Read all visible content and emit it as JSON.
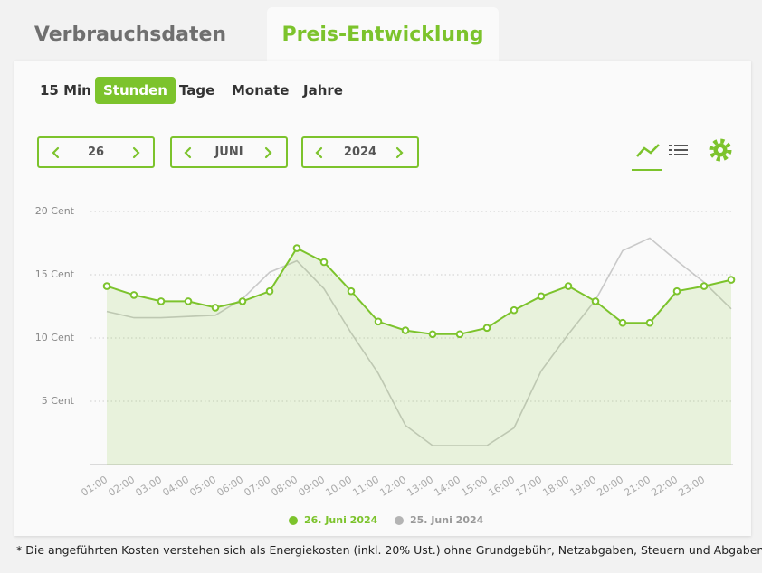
{
  "tabs": [
    "Verbrauchsdaten",
    "Preis-Entwicklung"
  ],
  "active_tab": 1,
  "periods": [
    "15 Min",
    "Stunden",
    "Tage",
    "Monate",
    "Jahre"
  ],
  "active_period": 1,
  "selectors": [
    "26",
    "JUNI",
    "2024"
  ],
  "chart_data": {
    "type": "line",
    "categories": [
      "01:00",
      "02:00",
      "03:00",
      "04:00",
      "05:00",
      "06:00",
      "07:00",
      "08:00",
      "09:00",
      "10:00",
      "11:00",
      "12:00",
      "13:00",
      "14:00",
      "15:00",
      "16:00",
      "17:00",
      "18:00",
      "19:00",
      "20:00",
      "21:00",
      "22:00",
      "23:00",
      null
    ],
    "series": [
      {
        "name": "26. Juni 2024",
        "color": "#7cc32c",
        "values": [
          14.1,
          13.4,
          12.9,
          12.9,
          12.4,
          12.9,
          13.7,
          17.1,
          16.0,
          13.7,
          11.3,
          10.6,
          10.3,
          10.3,
          10.8,
          12.2,
          13.3,
          14.1,
          12.9,
          11.2,
          11.2,
          13.7,
          14.1,
          14.6
        ]
      },
      {
        "name": "25. Juni 2024",
        "color": "#b4b4b4",
        "values": [
          12.1,
          11.6,
          11.6,
          11.7,
          11.8,
          13.1,
          15.2,
          16.1,
          13.9,
          10.4,
          7.2,
          3.1,
          1.5,
          1.5,
          1.5,
          2.9,
          7.4,
          10.3,
          13.0,
          16.9,
          17.9,
          16.1,
          14.4,
          12.3
        ]
      }
    ],
    "ylim": [
      0,
      20
    ],
    "yticks": [
      {
        "value": 5,
        "label": "5 Cent"
      },
      {
        "value": 10,
        "label": "10 Cent"
      },
      {
        "value": 15,
        "label": "15 Cent"
      },
      {
        "value": 20,
        "label": "20 Cent"
      }
    ],
    "grid": true,
    "legend": "bottom"
  },
  "footnote": "* Die angeführten Kosten verstehen sich als Energiekosten (inkl. 20% Ust.) ohne Grundgebühr, Netzabgaben, Steuern und Abgaben."
}
